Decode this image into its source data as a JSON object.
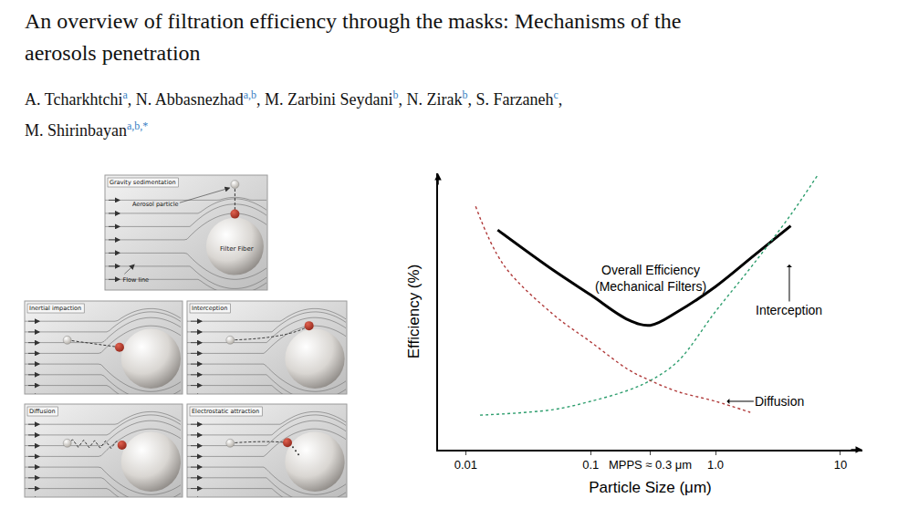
{
  "title": [
    "An overview of filtration efficiency through the masks: Mechanisms of the",
    "aerosols penetration"
  ],
  "authors": [
    [
      {
        "name": "A. Tcharkhtchi",
        "sup": "a",
        "sep": ","
      },
      {
        "name": "N. Abbasnezhad",
        "sup": "a,b",
        "sep": ","
      },
      {
        "name": "M. Zarbini Seydani",
        "sup": "b",
        "sep": ","
      },
      {
        "name": "N. Zirak",
        "sup": "b",
        "sep": ","
      },
      {
        "name": "S. Farzaneh",
        "sup": "c",
        "sep": ","
      }
    ],
    [
      {
        "name": "M. Shirinbayan",
        "sup": "a,b,*"
      }
    ]
  ],
  "diagram": {
    "panels": [
      {
        "label": "Gravity sedimentation",
        "notes": [
          "Aerosol particle",
          "Filter Fiber",
          "Flow line"
        ]
      },
      {
        "label": "Inertial impaction"
      },
      {
        "label": "Interception"
      },
      {
        "label": "Diffusion"
      },
      {
        "label": "Electrostatic attraction"
      }
    ]
  },
  "chart_data": {
    "type": "line",
    "x_label": "Particle Size (μm)",
    "y_label": "Efficiency (%)",
    "log": "x",
    "grid": false,
    "tick_labels": "x",
    "xlim": [
      0.006,
      15
    ],
    "xticks": [
      0.01,
      0.1,
      {
        "value": 0.3,
        "label": "MPPS ≈ 0.3 μm"
      },
      {
        "value": 1,
        "label": "1.0"
      },
      10
    ],
    "ylim": [
      0,
      100
    ],
    "yticks": [],
    "series": [
      {
        "name": "Overall Efficiency (Mechanical Filters)",
        "color": "#000000",
        "line_style": "solid",
        "x": [
          0.018,
          0.05,
          0.1,
          0.2,
          0.3,
          0.5,
          1.0,
          2.0,
          4.0
        ],
        "values": [
          79.5,
          65,
          56,
          47,
          45,
          50,
          59,
          70,
          81
        ]
      },
      {
        "name": "Diffusion",
        "color": "#b03a3a",
        "line_style": "dot",
        "x": [
          0.012,
          0.02,
          0.05,
          0.1,
          0.2,
          0.3,
          0.5,
          1.0,
          1.9
        ],
        "values": [
          88,
          67,
          49,
          39,
          29,
          25,
          21,
          17.5,
          13.5
        ]
      },
      {
        "name": "Interception",
        "color": "#2e9e6e",
        "line_style": "dot",
        "x": [
          0.013,
          0.05,
          0.1,
          0.2,
          0.3,
          0.5,
          1.0,
          2.0,
          4.0,
          6.5
        ],
        "values": [
          12.5,
          14.5,
          17.5,
          21.5,
          25,
          32,
          50,
          67,
          85,
          99
        ]
      }
    ],
    "annotations": [
      {
        "text": [
          "Overall Efficiency",
          "(Mechanical Filters)"
        ],
        "x": 0.3,
        "y": 62
      },
      {
        "text": "Interception",
        "x": 3.9,
        "y": 67
      },
      {
        "text": "Diffusion",
        "x": 1.23,
        "y": 17.5
      }
    ]
  }
}
